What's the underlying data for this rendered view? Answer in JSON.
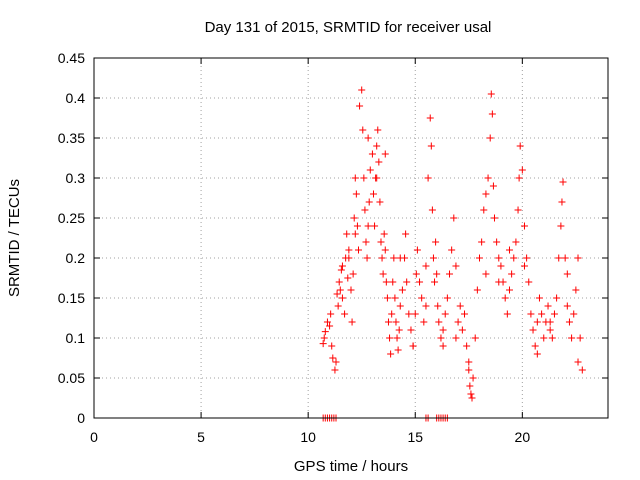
{
  "chart_data": {
    "type": "scatter",
    "title": "Day 131 of 2015, SRMTID for receiver usal",
    "xlabel": "GPS time / hours",
    "ylabel": "SRMTID / TECUs",
    "xlim": [
      0,
      24
    ],
    "ylim": [
      0,
      0.45
    ],
    "x_ticks": [
      0,
      5,
      10,
      15,
      20
    ],
    "x_tick_labels": [
      "0",
      "5",
      "10",
      "15",
      "20"
    ],
    "y_ticks": [
      0,
      0.05,
      0.1,
      0.15,
      0.2,
      0.25,
      0.3,
      0.35,
      0.4,
      0.45
    ],
    "y_tick_labels": [
      "0",
      "0.05",
      "0.1",
      "0.15",
      "0.2",
      "0.25",
      "0.3",
      "0.35",
      "0.4",
      "0.45"
    ],
    "grid": true,
    "series": [
      {
        "name": "SRMTID",
        "color": "#ff0000",
        "marker": "+",
        "x": [
          10.7,
          10.75,
          10.8,
          10.9,
          11.0,
          11.05,
          11.1,
          11.15,
          11.25,
          11.3,
          11.35,
          11.4,
          11.45,
          11.5,
          11.55,
          11.6,
          11.7,
          11.75,
          11.8,
          11.85,
          11.9,
          12.0,
          12.05,
          12.1,
          12.15,
          12.2,
          12.25,
          12.3,
          12.35,
          12.4,
          12.5,
          12.55,
          12.6,
          12.65,
          12.7,
          12.75,
          12.8,
          12.85,
          12.9,
          13.0,
          13.05,
          13.1,
          13.15,
          13.2,
          13.25,
          13.3,
          13.35,
          13.4,
          13.45,
          13.5,
          13.55,
          13.6,
          13.65,
          13.7,
          13.75,
          13.8,
          13.85,
          13.9,
          13.95,
          14.0,
          14.05,
          14.1,
          14.15,
          14.2,
          14.25,
          14.3,
          14.4,
          14.5,
          14.55,
          14.6,
          14.7,
          14.8,
          14.9,
          15.0,
          15.05,
          15.1,
          15.2,
          15.3,
          15.4,
          15.5,
          15.6,
          15.7,
          15.75,
          15.8,
          15.85,
          15.9,
          15.95,
          16.0,
          16.05,
          16.1,
          16.2,
          16.3,
          16.4,
          16.5,
          16.6,
          16.7,
          16.8,
          16.9,
          17.0,
          17.1,
          17.2,
          17.3,
          17.4,
          17.5,
          17.55,
          17.6,
          17.65,
          17.7,
          17.8,
          17.9,
          18.0,
          18.1,
          18.2,
          18.3,
          18.4,
          18.5,
          18.55,
          18.6,
          18.65,
          18.7,
          18.8,
          18.9,
          19.0,
          19.1,
          19.2,
          19.3,
          19.4,
          19.5,
          19.6,
          19.7,
          19.8,
          19.85,
          19.9,
          20.0,
          20.1,
          20.2,
          20.3,
          20.4,
          20.5,
          20.6,
          20.7,
          20.8,
          20.9,
          21.0,
          21.1,
          21.2,
          21.3,
          21.4,
          21.5,
          21.6,
          21.7,
          21.8,
          21.85,
          21.9,
          22.0,
          22.1,
          22.2,
          22.3,
          22.4,
          22.5,
          22.6,
          22.7,
          22.8,
          11.6,
          11.9,
          12.2,
          12.8,
          13.2,
          13.6,
          14.3,
          14.9,
          15.5,
          16.3,
          16.9,
          17.5,
          18.3,
          18.9,
          19.4,
          20.1,
          20.7,
          21.3,
          22.1,
          22.6,
          10.7,
          10.8,
          10.9,
          11.0,
          11.1,
          11.2,
          11.3,
          15.5,
          15.6,
          16.0,
          16.1,
          16.2,
          16.3,
          16.4,
          16.5
        ],
        "y": [
          0.093,
          0.1,
          0.108,
          0.12,
          0.115,
          0.13,
          0.09,
          0.075,
          0.06,
          0.07,
          0.155,
          0.14,
          0.17,
          0.16,
          0.185,
          0.15,
          0.13,
          0.2,
          0.23,
          0.175,
          0.21,
          0.16,
          0.12,
          0.18,
          0.25,
          0.3,
          0.28,
          0.24,
          0.21,
          0.39,
          0.41,
          0.36,
          0.3,
          0.26,
          0.22,
          0.2,
          0.24,
          0.27,
          0.31,
          0.33,
          0.28,
          0.24,
          0.3,
          0.34,
          0.36,
          0.32,
          0.27,
          0.22,
          0.2,
          0.18,
          0.23,
          0.21,
          0.17,
          0.15,
          0.12,
          0.1,
          0.08,
          0.13,
          0.17,
          0.2,
          0.15,
          0.12,
          0.1,
          0.085,
          0.11,
          0.14,
          0.16,
          0.2,
          0.23,
          0.17,
          0.13,
          0.11,
          0.09,
          0.13,
          0.18,
          0.21,
          0.17,
          0.15,
          0.12,
          0.19,
          0.3,
          0.375,
          0.34,
          0.26,
          0.2,
          0.17,
          0.22,
          0.18,
          0.14,
          0.12,
          0.1,
          0.11,
          0.13,
          0.15,
          0.18,
          0.21,
          0.25,
          0.19,
          0.12,
          0.14,
          0.11,
          0.13,
          0.09,
          0.06,
          0.04,
          0.03,
          0.025,
          0.05,
          0.1,
          0.16,
          0.2,
          0.22,
          0.26,
          0.28,
          0.3,
          0.35,
          0.405,
          0.38,
          0.29,
          0.25,
          0.22,
          0.2,
          0.19,
          0.17,
          0.15,
          0.13,
          0.16,
          0.18,
          0.2,
          0.22,
          0.26,
          0.3,
          0.34,
          0.31,
          0.24,
          0.2,
          0.17,
          0.13,
          0.11,
          0.09,
          0.12,
          0.15,
          0.13,
          0.1,
          0.12,
          0.14,
          0.11,
          0.1,
          0.13,
          0.15,
          0.2,
          0.24,
          0.27,
          0.295,
          0.2,
          0.14,
          0.12,
          0.1,
          0.13,
          0.16,
          0.2,
          0.1,
          0.06,
          0.19,
          0.2,
          0.23,
          0.35,
          0.3,
          0.33,
          0.2,
          0.09,
          0.14,
          0.09,
          0.1,
          0.07,
          0.18,
          0.17,
          0.21,
          0.19,
          0.08,
          0.12,
          0.18,
          0.07,
          0.0,
          0.0,
          0.0,
          0.0,
          0.0,
          0.0,
          0.0,
          0.0,
          0.0,
          0.0,
          0.0,
          0.0,
          0.0,
          0.0,
          0.0
        ]
      }
    ]
  }
}
